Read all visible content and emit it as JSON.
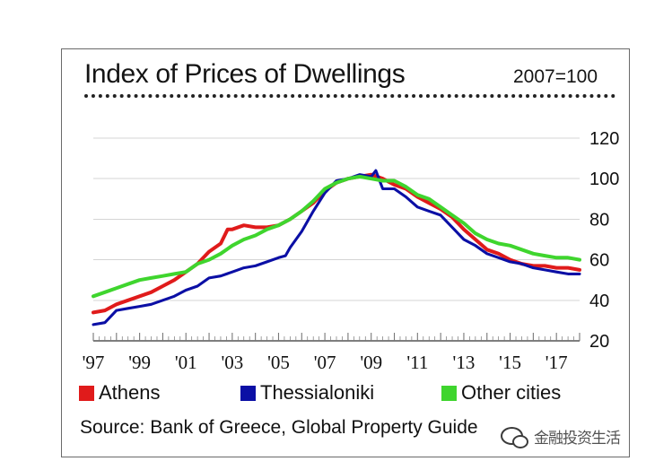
{
  "chart_data": {
    "type": "line",
    "title": "Index of Prices of Dwellings",
    "base_note": "2007=100",
    "xlabel": "",
    "ylabel": "",
    "x_range": [
      1997,
      2018
    ],
    "ylim": [
      20,
      120
    ],
    "y_ticks": [
      20,
      40,
      60,
      80,
      100,
      120
    ],
    "y_tick_labels": [
      "20",
      "40",
      "60",
      "80",
      "100",
      "120"
    ],
    "x_ticks": [
      1997,
      1999,
      2001,
      2003,
      2005,
      2007,
      2009,
      2011,
      2013,
      2015,
      2017
    ],
    "x_tick_labels": [
      "'97",
      "'99",
      "'01",
      "'03",
      "'05",
      "'07",
      "'09",
      "'11",
      "'13",
      "'15",
      "'17"
    ],
    "grid": "horizontal",
    "legend_position": "bottom",
    "series": [
      {
        "name": "Athens",
        "color": "#e01b1b",
        "x": [
          1997.0,
          1997.5,
          1998.0,
          1998.5,
          1999.0,
          1999.5,
          2000.0,
          2000.5,
          2001.0,
          2001.5,
          2002.0,
          2002.5,
          2002.8,
          2003.0,
          2003.5,
          2004.0,
          2004.5,
          2005.0,
          2005.5,
          2006.0,
          2006.5,
          2007.0,
          2007.5,
          2008.0,
          2008.5,
          2009.0,
          2009.5,
          2010.0,
          2010.5,
          2011.0,
          2011.5,
          2012.0,
          2012.5,
          2013.0,
          2013.5,
          2014.0,
          2014.5,
          2015.0,
          2015.5,
          2016.0,
          2016.5,
          2017.0,
          2017.5,
          2018.0
        ],
        "values": [
          34,
          35,
          38,
          40,
          42,
          44,
          47,
          50,
          54,
          58,
          64,
          68,
          75,
          75,
          77,
          76,
          76,
          77,
          80,
          84,
          88,
          94,
          98,
          100,
          101,
          102,
          100,
          97,
          95,
          91,
          88,
          85,
          81,
          75,
          70,
          65,
          63,
          60,
          58,
          57,
          57,
          56,
          56,
          55
        ]
      },
      {
        "name": "Thessialoniki",
        "color": "#0b0fa5",
        "x": [
          1997.0,
          1997.5,
          1998.0,
          1998.5,
          1999.0,
          1999.5,
          2000.0,
          2000.5,
          2001.0,
          2001.5,
          2002.0,
          2002.5,
          2003.0,
          2003.5,
          2004.0,
          2004.5,
          2005.0,
          2005.3,
          2005.5,
          2006.0,
          2006.5,
          2007.0,
          2007.5,
          2008.0,
          2008.5,
          2009.0,
          2009.2,
          2009.5,
          2010.0,
          2010.5,
          2011.0,
          2011.5,
          2012.0,
          2012.5,
          2013.0,
          2013.5,
          2014.0,
          2014.5,
          2015.0,
          2015.5,
          2016.0,
          2016.5,
          2017.0,
          2017.5,
          2018.0
        ],
        "values": [
          28,
          29,
          35,
          36,
          37,
          38,
          40,
          42,
          45,
          47,
          51,
          52,
          54,
          56,
          57,
          59,
          61,
          62,
          66,
          74,
          84,
          93,
          99,
          100,
          102,
          101,
          104,
          95,
          95,
          91,
          86,
          84,
          82,
          76,
          70,
          67,
          63,
          61,
          59,
          58,
          56,
          55,
          54,
          53,
          53
        ]
      },
      {
        "name": "Other cities",
        "color": "#3fd52e",
        "x": [
          1997.0,
          1997.5,
          1998.0,
          1998.5,
          1999.0,
          1999.5,
          2000.0,
          2000.5,
          2001.0,
          2001.5,
          2002.0,
          2002.5,
          2003.0,
          2003.5,
          2004.0,
          2004.5,
          2005.0,
          2005.5,
          2006.0,
          2006.5,
          2007.0,
          2007.5,
          2008.0,
          2008.5,
          2009.0,
          2009.5,
          2010.0,
          2010.5,
          2011.0,
          2011.5,
          2012.0,
          2012.5,
          2013.0,
          2013.5,
          2014.0,
          2014.5,
          2015.0,
          2015.5,
          2016.0,
          2016.5,
          2017.0,
          2017.5,
          2018.0
        ],
        "values": [
          42,
          44,
          46,
          48,
          50,
          51,
          52,
          53,
          54,
          58,
          60,
          63,
          67,
          70,
          72,
          75,
          77,
          80,
          84,
          89,
          95,
          98,
          100,
          101,
          100,
          99,
          99,
          96,
          92,
          90,
          86,
          82,
          78,
          73,
          70,
          68,
          67,
          65,
          63,
          62,
          61,
          61,
          60
        ]
      }
    ],
    "source": "Source: Bank of Greece, Global Property Guide"
  },
  "watermark": {
    "text": "金融投资生活"
  }
}
